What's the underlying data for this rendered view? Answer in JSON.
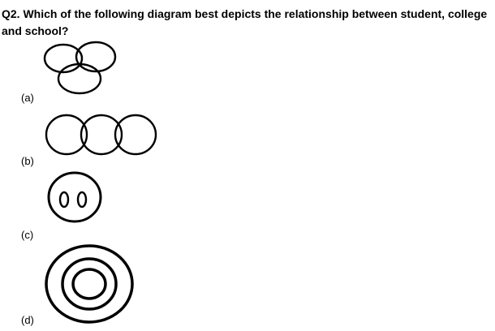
{
  "question": {
    "text": "Q2. Which of the following diagram best depicts the relationship between student, college and school?"
  },
  "options": [
    {
      "label": "(a)",
      "diagram": "three-overlapping-circles-triangle"
    },
    {
      "label": "(b)",
      "diagram": "three-overlapping-circles-row"
    },
    {
      "label": "(c)",
      "diagram": "two-small-ovals-inside-large-oval"
    },
    {
      "label": "(d)",
      "diagram": "concentric-circles"
    }
  ],
  "colors": {
    "text": "#000000",
    "stroke": "#000000",
    "background": "#ffffff"
  }
}
